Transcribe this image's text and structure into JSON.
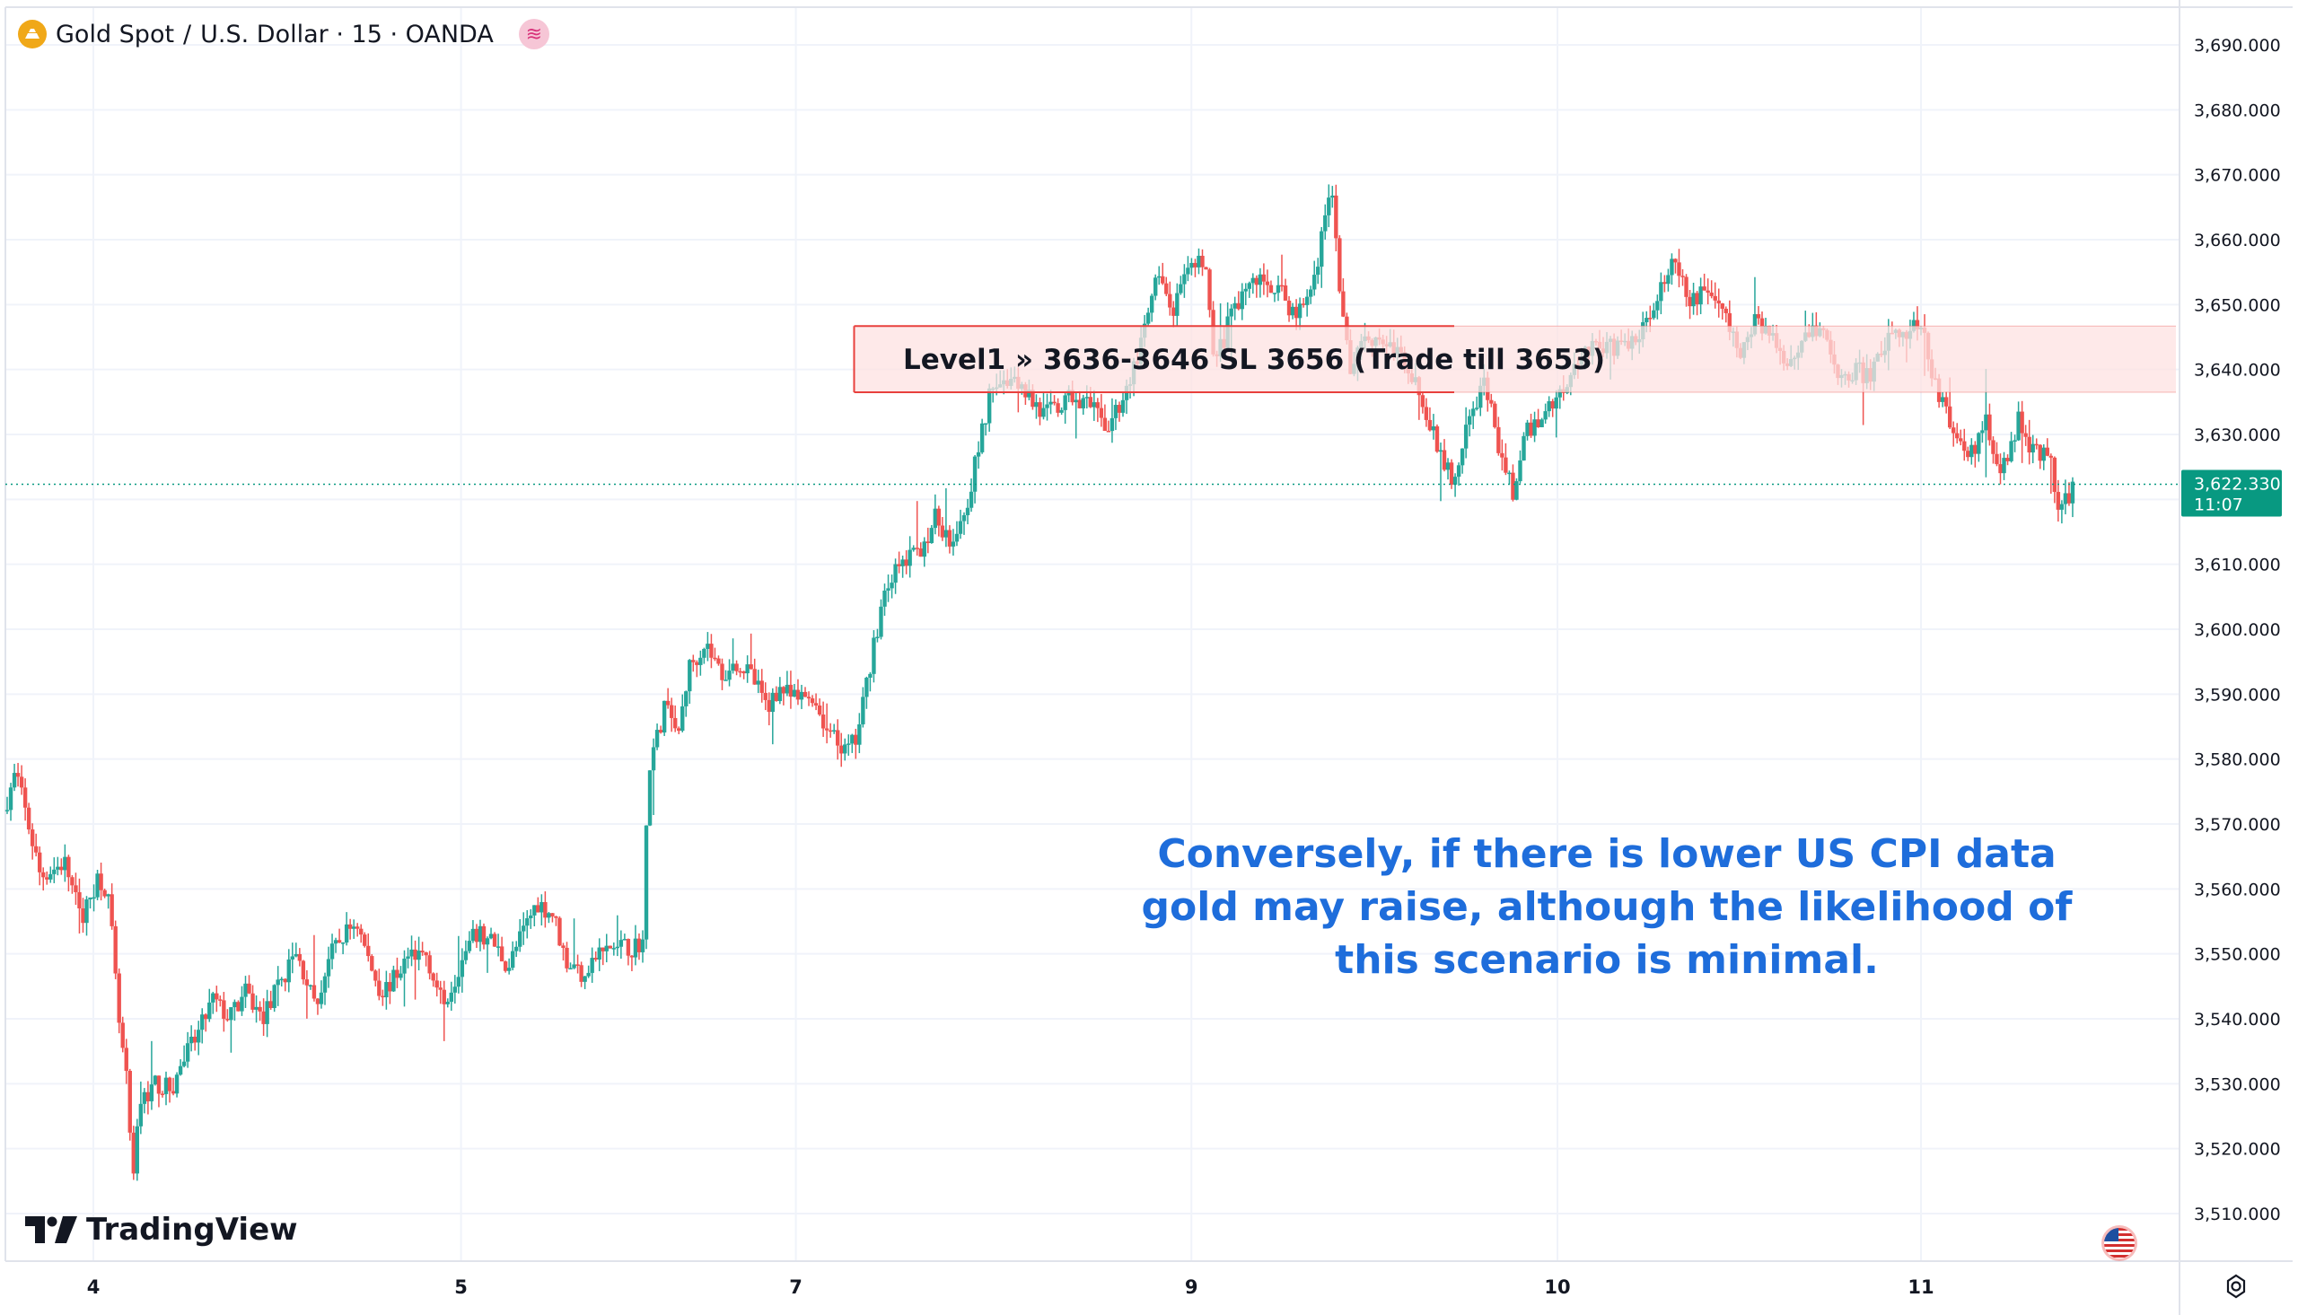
{
  "header": {
    "symbol": "Gold Spot",
    "separator": "/",
    "title_rest": "U.S. Dollar · 15 · OANDA",
    "symbol_icon": "gold-coin-icon",
    "indicator_icon": "indicators-icon"
  },
  "logo": {
    "text": "TradingView",
    "icon": "tradingview-logo-icon"
  },
  "annotation": {
    "text": "Conversely, if there is lower US CPI data gold may raise, although the likelihood of this scenario is minimal."
  },
  "colors": {
    "up": "#26a69a",
    "down": "#ef5350",
    "zone_fill": "#fde2e2",
    "zone_border": "#e8403d",
    "price_label_bg": "#089981",
    "annotation_text": "#1e6ddb",
    "grid": "#f0f3fa",
    "axis_text": "#131722"
  },
  "price_label": {
    "price": "3,622.330",
    "countdown": "11:07"
  },
  "bottom_icons": {
    "flag": "us-flag-icon",
    "settings": "gear-icon"
  },
  "chart_data": {
    "type": "candlestick",
    "title": "Gold Spot / U.S. Dollar · 15 · OANDA",
    "ylim": [
      3503,
      3694
    ],
    "y_ticks": [
      3510,
      3520,
      3530,
      3540,
      3550,
      3560,
      3570,
      3580,
      3590,
      3600,
      3610,
      3620,
      3630,
      3640,
      3650,
      3660,
      3670,
      3680,
      3690
    ],
    "y_tick_labels": [
      "3,510.000",
      "3,520.000",
      "3,530.000",
      "3,540.000",
      "3,550.000",
      "3,560.000",
      "3,570.000",
      "3,580.000",
      "3,590.000",
      "3,600.000",
      "3,610.000",
      "3,620.000",
      "3,630.000",
      "3,640.000",
      "3,650.000",
      "3,660.000",
      "3,670.000",
      "3,680.000",
      "3,690.000"
    ],
    "x_day_labels": [
      "4",
      "5",
      "7",
      "9",
      "10",
      "11"
    ],
    "x_day_positions": [
      0.0,
      44.8,
      85.6,
      133.8,
      178.4,
      222.7
    ],
    "x_range": [
      -10.5,
      242.4
    ],
    "last_price": 3622.33,
    "zone": {
      "label": "Level1 » 3636-3646 SL 3656 (Trade till 3653)",
      "low": 3636.5,
      "high": 3646.7,
      "start_x": 92.7
    },
    "path": [
      [
        -10.5,
        3572
      ],
      [
        -9,
        3578
      ],
      [
        -6,
        3562
      ],
      [
        -3,
        3564
      ],
      [
        -1,
        3555
      ],
      [
        1,
        3562
      ],
      [
        2,
        3560
      ],
      [
        2.5,
        3556
      ],
      [
        3.5,
        3540
      ],
      [
        4.5,
        3530
      ],
      [
        5.3,
        3514
      ],
      [
        6,
        3527
      ],
      [
        8,
        3530
      ],
      [
        10,
        3529
      ],
      [
        11.5,
        3534
      ],
      [
        13,
        3537
      ],
      [
        15,
        3543
      ],
      [
        17,
        3540
      ],
      [
        19,
        3544
      ],
      [
        21,
        3540
      ],
      [
        23,
        3545
      ],
      [
        25,
        3550
      ],
      [
        26.5,
        3546
      ],
      [
        27.5,
        3541
      ],
      [
        29,
        3549
      ],
      [
        31,
        3553
      ],
      [
        32.5,
        3555
      ],
      [
        34,
        3549
      ],
      [
        35.5,
        3544
      ],
      [
        37,
        3546
      ],
      [
        39,
        3550
      ],
      [
        41,
        3550
      ],
      [
        43,
        3542
      ],
      [
        45,
        3548
      ],
      [
        47,
        3553
      ],
      [
        49,
        3552
      ],
      [
        51,
        3548
      ],
      [
        53,
        3554
      ],
      [
        54.5,
        3558
      ],
      [
        56.5,
        3556
      ],
      [
        58,
        3549
      ],
      [
        60,
        3547
      ],
      [
        62,
        3550
      ],
      [
        64,
        3551
      ],
      [
        66,
        3551
      ],
      [
        67.5,
        3552
      ],
      [
        68,
        3578
      ],
      [
        69.5,
        3585
      ],
      [
        70.5,
        3590
      ],
      [
        71.5,
        3582
      ],
      [
        73,
        3594
      ],
      [
        75,
        3598
      ],
      [
        77,
        3593
      ],
      [
        79,
        3595
      ],
      [
        81,
        3592
      ],
      [
        82.5,
        3588
      ],
      [
        84,
        3591
      ],
      [
        86,
        3589
      ],
      [
        88,
        3590
      ],
      [
        90,
        3584
      ],
      [
        92,
        3581
      ],
      [
        93.5,
        3583
      ],
      [
        95,
        3594
      ],
      [
        97,
        3607
      ],
      [
        99,
        3610
      ],
      [
        101,
        3612
      ],
      [
        103,
        3617
      ],
      [
        105,
        3614
      ],
      [
        107,
        3620
      ],
      [
        109,
        3632
      ],
      [
        110,
        3638
      ],
      [
        112,
        3639
      ],
      [
        114,
        3637
      ],
      [
        116,
        3633
      ],
      [
        118,
        3634
      ],
      [
        120,
        3636
      ],
      [
        122,
        3634
      ],
      [
        124,
        3631
      ],
      [
        126,
        3636
      ],
      [
        128,
        3643
      ],
      [
        130,
        3654
      ],
      [
        132,
        3649
      ],
      [
        134,
        3655
      ],
      [
        136,
        3657
      ],
      [
        137,
        3640
      ],
      [
        139,
        3648
      ],
      [
        141,
        3653
      ],
      [
        143,
        3654
      ],
      [
        145,
        3652
      ],
      [
        147,
        3648
      ],
      [
        149,
        3653
      ],
      [
        150.5,
        3663
      ],
      [
        151.5,
        3667
      ],
      [
        152.5,
        3650
      ],
      [
        153.5,
        3640
      ],
      [
        155,
        3645
      ],
      [
        157,
        3645
      ],
      [
        159,
        3643
      ],
      [
        161,
        3640
      ],
      [
        163,
        3632
      ],
      [
        165,
        3626
      ],
      [
        166.5,
        3622
      ],
      [
        168,
        3632
      ],
      [
        170,
        3638
      ],
      [
        172,
        3626
      ],
      [
        173.5,
        3621
      ],
      [
        175,
        3630
      ],
      [
        177,
        3633
      ],
      [
        179,
        3636
      ],
      [
        181,
        3641
      ],
      [
        183,
        3644
      ],
      [
        185,
        3643
      ],
      [
        187,
        3644
      ],
      [
        189,
        3645
      ],
      [
        191,
        3652
      ],
      [
        193,
        3656
      ],
      [
        195,
        3650
      ],
      [
        197,
        3653
      ],
      [
        199,
        3649
      ],
      [
        201,
        3642
      ],
      [
        203,
        3648
      ],
      [
        205,
        3645
      ],
      [
        207,
        3641
      ],
      [
        209,
        3646
      ],
      [
        211,
        3647
      ],
      [
        213,
        3638
      ],
      [
        215,
        3640
      ],
      [
        217,
        3639
      ],
      [
        219,
        3644
      ],
      [
        221,
        3646
      ],
      [
        223,
        3647
      ],
      [
        225,
        3637
      ],
      [
        227,
        3631
      ],
      [
        229,
        3626
      ],
      [
        231,
        3632
      ],
      [
        233,
        3624
      ],
      [
        235,
        3632
      ],
      [
        237,
        3627
      ],
      [
        239,
        3626
      ],
      [
        240,
        3617
      ],
      [
        241.5,
        3622
      ]
    ]
  }
}
